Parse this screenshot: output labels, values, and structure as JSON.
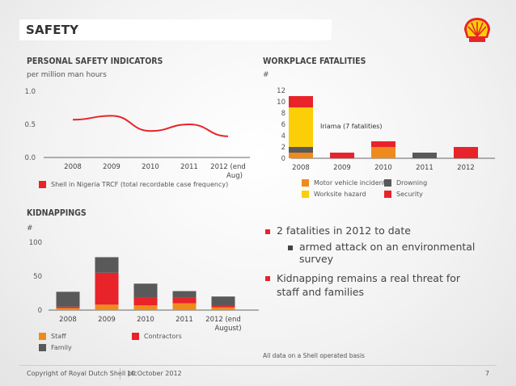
{
  "title": "SAFETY",
  "colors": {
    "red": "#e8232a",
    "yellow": "#fbce07",
    "orange": "#ef8b1c",
    "gray": "#595959",
    "darkred": "#c8102e"
  },
  "logo_icon": "shell-pecten-icon",
  "personal_safety": {
    "heading": "PERSONAL SAFETY INDICATORS",
    "subheading": "per million man hours",
    "legend": "Shell in Nigeria TRCF (total recordable case frequency)",
    "chart_data": {
      "type": "line",
      "categories": [
        "2008",
        "2009",
        "2010",
        "2011",
        "2012 (end Aug)"
      ],
      "y_ticks": [
        "1.0",
        "0.5",
        "0.0"
      ],
      "ylim": [
        0,
        1.0
      ],
      "series": [
        {
          "values": [
            0.57,
            0.63,
            0.4,
            0.5,
            0.32
          ]
        }
      ]
    }
  },
  "fatalities": {
    "heading": "WORKPLACE FATALITIES",
    "subheading": "#",
    "annotation": "Iriama (7 fatalities)",
    "chart_data": {
      "type": "bar",
      "stacked": true,
      "categories": [
        "2008",
        "2009",
        "2010",
        "2011",
        "2012"
      ],
      "y_ticks": [
        "12",
        "10",
        "8",
        "6",
        "4",
        "2",
        "0"
      ],
      "ylim": [
        0,
        12
      ],
      "series": [
        {
          "name": "Motor vehicle incident",
          "color": "#ef8b1c",
          "values": [
            1,
            0,
            2,
            0,
            0
          ]
        },
        {
          "name": "Drowning",
          "color": "#595959",
          "values": [
            1,
            0,
            0,
            1,
            0
          ]
        },
        {
          "name": "Worksite hazard",
          "color": "#fbce07",
          "values": [
            7,
            0,
            0,
            0,
            0
          ]
        },
        {
          "name": "Security",
          "color": "#e8232a",
          "values": [
            2,
            1,
            1,
            0,
            2
          ]
        }
      ],
      "legend_order": [
        0,
        1,
        2,
        3
      ]
    }
  },
  "kidnappings": {
    "heading": "KIDNAPPINGS",
    "subheading": "#",
    "chart_data": {
      "type": "bar",
      "stacked": true,
      "categories": [
        "2008",
        "2009",
        "2010",
        "2011",
        "2012 (end August)"
      ],
      "y_ticks": [
        "100",
        "50",
        "0"
      ],
      "ylim": [
        0,
        100
      ],
      "series": [
        {
          "name": "Staff",
          "color": "#ef8b1c",
          "values": [
            3,
            8,
            7,
            10,
            4
          ]
        },
        {
          "name": "Contractors",
          "color": "#e8232a",
          "values": [
            2,
            47,
            12,
            8,
            2
          ]
        },
        {
          "name": "Family",
          "color": "#595959",
          "values": [
            22,
            23,
            20,
            10,
            14
          ]
        }
      ]
    }
  },
  "bullets": [
    {
      "text": "2 fatalities in 2012 to date",
      "sub": "armed attack on an environmental survey"
    },
    {
      "text": "Kidnapping remains a real threat for staff and families"
    }
  ],
  "note": "All data on a Shell operated basis",
  "footer": {
    "copyright": "Copyright of Royal Dutch Shell plc",
    "date": "10 October 2012",
    "page": "7"
  }
}
